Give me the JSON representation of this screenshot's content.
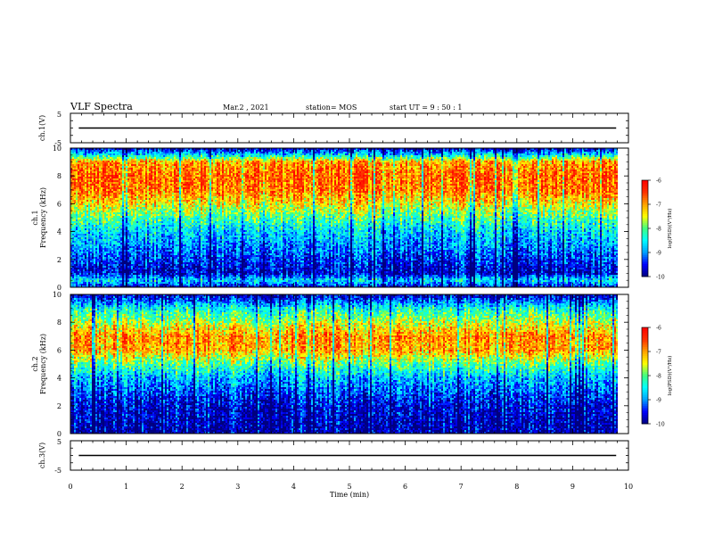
{
  "header": {
    "title": "VLF Spectra",
    "date": "Mar.2  , 2021",
    "station": "station= MOS",
    "start_ut": "start  UT =   9 : 50 : 1"
  },
  "colors": {
    "background": "#ffffff",
    "axis": "#000000",
    "colormap": [
      "#00007f",
      "#0000ff",
      "#00a0ff",
      "#00ffff",
      "#40ff80",
      "#ffff00",
      "#ffa000",
      "#ff3000",
      "#ff0000"
    ]
  },
  "chart_data": [
    {
      "type": "line",
      "panel": "ch1-waveform",
      "ylabel": "ch.1(V)",
      "ylim": [
        -5,
        5
      ],
      "y_tick_labels": [
        "5",
        "-5"
      ],
      "series_level": 0
    },
    {
      "type": "heatmap",
      "panel": "ch1-spectrogram",
      "ylabel_channel": "ch.1",
      "ylabel": "Frequency  (kHz)",
      "ylim": [
        0,
        10
      ],
      "y_tick_labels": [
        "0",
        "2",
        "4",
        "6",
        "8",
        "10"
      ],
      "xlim": [
        0,
        9.8
      ],
      "intensity_profile_khz": [
        {
          "f": 0.0,
          "v": -9.6
        },
        {
          "f": 0.5,
          "v": -8.6
        },
        {
          "f": 1.0,
          "v": -9.7
        },
        {
          "f": 2.0,
          "v": -9.4
        },
        {
          "f": 3.0,
          "v": -9.0
        },
        {
          "f": 4.0,
          "v": -8.7
        },
        {
          "f": 5.0,
          "v": -8.1
        },
        {
          "f": 6.0,
          "v": -7.4
        },
        {
          "f": 7.0,
          "v": -6.8
        },
        {
          "f": 8.0,
          "v": -6.7
        },
        {
          "f": 9.0,
          "v": -7.0
        },
        {
          "f": 9.5,
          "v": -8.6
        },
        {
          "f": 10.0,
          "v": -9.8
        }
      ],
      "colorbar": {
        "label": "log(PSD)(V²/Hz)",
        "tick_labels": [
          "-6",
          "-7",
          "-8",
          "-9",
          "-10"
        ],
        "range": [
          -10,
          -6
        ]
      }
    },
    {
      "type": "heatmap",
      "panel": "ch2-spectrogram",
      "ylabel_channel": "ch.2",
      "ylabel": "Frequency  (kHz)",
      "ylim": [
        0,
        10
      ],
      "y_tick_labels": [
        "0",
        "2",
        "4",
        "6",
        "8",
        "10"
      ],
      "xlim": [
        0,
        9.8
      ],
      "intensity_profile_khz": [
        {
          "f": 0.0,
          "v": -9.8
        },
        {
          "f": 1.0,
          "v": -9.7
        },
        {
          "f": 2.0,
          "v": -9.6
        },
        {
          "f": 3.0,
          "v": -9.2
        },
        {
          "f": 4.0,
          "v": -8.8
        },
        {
          "f": 5.0,
          "v": -8.0
        },
        {
          "f": 6.0,
          "v": -7.0
        },
        {
          "f": 7.0,
          "v": -6.9
        },
        {
          "f": 8.0,
          "v": -7.6
        },
        {
          "f": 9.0,
          "v": -8.4
        },
        {
          "f": 10.0,
          "v": -9.8
        }
      ],
      "colorbar": {
        "label": "log(PSD)(V²/Hz)",
        "tick_labels": [
          "-6",
          "-7",
          "-8",
          "-9",
          "-10"
        ],
        "range": [
          -10,
          -6
        ]
      }
    },
    {
      "type": "line",
      "panel": "ch3-waveform",
      "ylabel": "ch.3(V)",
      "ylim": [
        -5,
        5
      ],
      "y_tick_labels": [
        "5",
        "-5"
      ],
      "series_level": 0
    }
  ],
  "x_axis": {
    "label": "Time  (min)",
    "xlim": [
      0,
      10
    ],
    "tick_labels": [
      "0",
      "1",
      "2",
      "3",
      "4",
      "5",
      "6",
      "7",
      "8",
      "9",
      "10"
    ]
  }
}
